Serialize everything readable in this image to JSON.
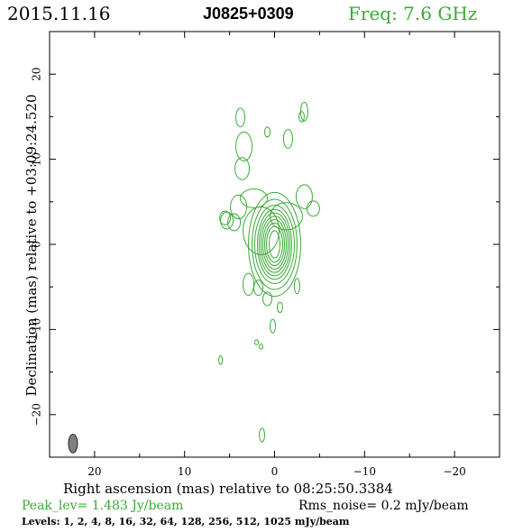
{
  "header": {
    "date": "2015.11.16",
    "source": "J0825+0309",
    "freq": "Freq: 7.6 GHz"
  },
  "axes": {
    "xlabel": "Right ascension (mas) relative to 08:25:50.3384",
    "ylabel": "Declination (mas) relative to +03:09:24.520"
  },
  "footer": {
    "peak": "Peak_lev=  1.483 Jy/beam",
    "rms": "Rms_noise=  0.2 mJy/beam",
    "levels": "Levels:   1,    2,    4,    8,   16,   32,   64, 128, 256, 512, 1025 mJy/beam"
  },
  "colors": {
    "contour": "#3aaa35",
    "beam": "#808080",
    "axis": "#000000"
  },
  "chart_data": {
    "type": "contour",
    "xlim": [
      25,
      -25
    ],
    "ylim": [
      -25,
      25
    ],
    "xticks": [
      20,
      10,
      0,
      -10,
      -20
    ],
    "xtick_labels": [
      "20",
      "10",
      "0",
      "−10",
      "−20"
    ],
    "yticks": [
      20,
      10,
      0,
      -10,
      -20
    ],
    "ytick_labels": [
      "20",
      "10",
      "0",
      "−10",
      "−20"
    ],
    "beam": {
      "x": 22.4,
      "y": -23.4,
      "major_mas": 2.2,
      "minor_mas": 1.0,
      "pa_deg": 0
    },
    "core": {
      "x": 0.0,
      "y": 0.0
    },
    "core_contours": [
      {
        "rx": 0.6,
        "ry": 1.6
      },
      {
        "rx": 0.9,
        "ry": 2.1
      },
      {
        "rx": 1.1,
        "ry": 2.5
      },
      {
        "rx": 1.3,
        "ry": 2.9
      },
      {
        "rx": 1.5,
        "ry": 3.3
      },
      {
        "rx": 1.7,
        "ry": 3.7
      },
      {
        "rx": 1.9,
        "ry": 4.1
      },
      {
        "rx": 2.2,
        "ry": 4.6
      },
      {
        "rx": 2.5,
        "ry": 5.3
      },
      {
        "rx": 2.9,
        "ry": 6.1
      }
    ],
    "components": [
      {
        "x": 1.5,
        "y": 1.6,
        "rx": 2.0,
        "ry": 2.8
      },
      {
        "x": -1.3,
        "y": 3.3,
        "rx": 1.8,
        "ry": 1.6
      },
      {
        "x": 2.3,
        "y": 5.4,
        "rx": 1.5,
        "ry": 1.1
      },
      {
        "x": -3.3,
        "y": 5.6,
        "rx": 0.9,
        "ry": 1.4
      },
      {
        "x": -4.3,
        "y": 4.2,
        "rx": 0.7,
        "ry": 0.9
      },
      {
        "x": 4.0,
        "y": 4.4,
        "rx": 0.9,
        "ry": 1.4
      },
      {
        "x": 4.5,
        "y": 2.6,
        "rx": 0.7,
        "ry": 1.0
      },
      {
        "x": 5.5,
        "y": 3.1,
        "rx": 0.6,
        "ry": 0.8
      },
      {
        "x": 3.4,
        "y": 11.5,
        "rx": 0.9,
        "ry": 1.7
      },
      {
        "x": 3.6,
        "y": 8.9,
        "rx": 0.8,
        "ry": 1.3
      },
      {
        "x": 3.8,
        "y": 14.9,
        "rx": 0.5,
        "ry": 1.1
      },
      {
        "x": 0.8,
        "y": 13.2,
        "rx": 0.3,
        "ry": 0.6
      },
      {
        "x": -1.5,
        "y": 12.4,
        "rx": 0.5,
        "ry": 1.1
      },
      {
        "x": -3.0,
        "y": 15.0,
        "rx": 0.3,
        "ry": 0.6
      },
      {
        "x": -3.3,
        "y": 15.6,
        "rx": 0.4,
        "ry": 1.1
      },
      {
        "x": 5.3,
        "y": 2.8,
        "rx": 0.7,
        "ry": 1.0
      },
      {
        "x": 2.9,
        "y": -4.7,
        "rx": 0.6,
        "ry": 1.3
      },
      {
        "x": 1.8,
        "y": -5.1,
        "rx": 0.5,
        "ry": 0.9
      },
      {
        "x": -2.5,
        "y": -4.9,
        "rx": 0.3,
        "ry": 0.9
      },
      {
        "x": 0.8,
        "y": -6.4,
        "rx": 0.5,
        "ry": 0.8
      },
      {
        "x": -0.6,
        "y": -7.4,
        "rx": 0.3,
        "ry": 0.6
      },
      {
        "x": 0.2,
        "y": -9.6,
        "rx": 0.3,
        "ry": 0.8
      },
      {
        "x": 2.0,
        "y": -11.5,
        "rx": 0.2,
        "ry": 0.3
      },
      {
        "x": 1.5,
        "y": -12.0,
        "rx": 0.2,
        "ry": 0.3
      },
      {
        "x": 6.0,
        "y": -13.6,
        "rx": 0.2,
        "ry": 0.5
      },
      {
        "x": 1.4,
        "y": -22.4,
        "rx": 0.3,
        "ry": 0.8
      }
    ]
  }
}
